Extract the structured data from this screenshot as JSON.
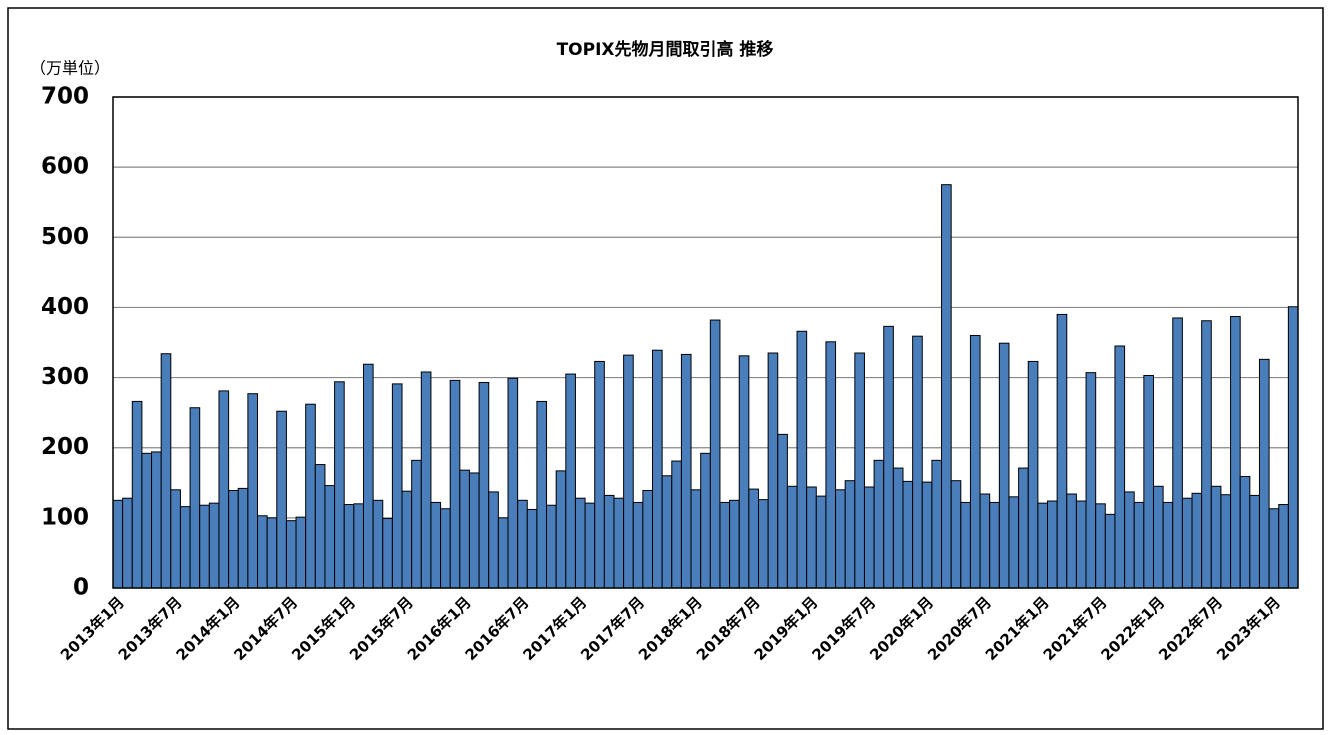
{
  "chart_data": {
    "type": "bar",
    "title": "TOPIX先物月間取引高 推移",
    "y_label": "（万単位）",
    "categories": [
      "2013年1月",
      null,
      null,
      null,
      null,
      null,
      "2013年7月",
      null,
      null,
      null,
      null,
      null,
      "2014年1月",
      null,
      null,
      null,
      null,
      null,
      "2014年7月",
      null,
      null,
      null,
      null,
      null,
      "2015年1月",
      null,
      null,
      null,
      null,
      null,
      "2015年7月",
      null,
      null,
      null,
      null,
      null,
      "2016年1月",
      null,
      null,
      null,
      null,
      null,
      "2016年7月",
      null,
      null,
      null,
      null,
      null,
      "2017年1月",
      null,
      null,
      null,
      null,
      null,
      "2017年7月",
      null,
      null,
      null,
      null,
      null,
      "2018年1月",
      null,
      null,
      null,
      null,
      null,
      "2018年7月",
      null,
      null,
      null,
      null,
      null,
      "2019年1月",
      null,
      null,
      null,
      null,
      null,
      "2019年7月",
      null,
      null,
      null,
      null,
      null,
      "2020年1月",
      null,
      null,
      null,
      null,
      null,
      "2020年7月",
      null,
      null,
      null,
      null,
      null,
      "2021年1月",
      null,
      null,
      null,
      null,
      null,
      "2021年7月",
      null,
      null,
      null,
      null,
      null,
      "2022年1月",
      null,
      null,
      null,
      null,
      null,
      "2022年7月",
      null,
      null,
      null,
      null,
      null,
      "2023年1月",
      null,
      null
    ],
    "values": [
      125,
      128,
      266,
      192,
      194,
      334,
      140,
      116,
      257,
      118,
      121,
      281,
      139,
      142,
      277,
      103,
      100,
      252,
      96,
      101,
      262,
      176,
      146,
      294,
      119,
      120,
      319,
      125,
      99,
      291,
      138,
      182,
      308,
      122,
      113,
      296,
      168,
      164,
      293,
      137,
      100,
      299,
      125,
      112,
      266,
      118,
      167,
      305,
      128,
      121,
      323,
      132,
      128,
      332,
      122,
      139,
      339,
      160,
      181,
      333,
      140,
      192,
      382,
      122,
      125,
      331,
      141,
      126,
      335,
      219,
      145,
      366,
      144,
      131,
      351,
      140,
      153,
      335,
      144,
      182,
      373,
      171,
      152,
      359,
      151,
      182,
      575,
      153,
      122,
      360,
      134,
      122,
      349,
      130,
      171,
      323,
      121,
      124,
      390,
      134,
      124,
      307,
      120,
      105,
      345,
      137,
      122,
      303,
      145,
      122,
      385,
      128,
      135,
      381,
      145,
      133,
      387,
      159,
      132,
      326,
      113,
      119,
      401
    ],
    "color": "#4a7ebb",
    "ylim": [
      0,
      700
    ],
    "yticks": [
      0,
      100,
      200,
      300,
      400,
      500,
      600,
      700
    ],
    "grid": true
  }
}
